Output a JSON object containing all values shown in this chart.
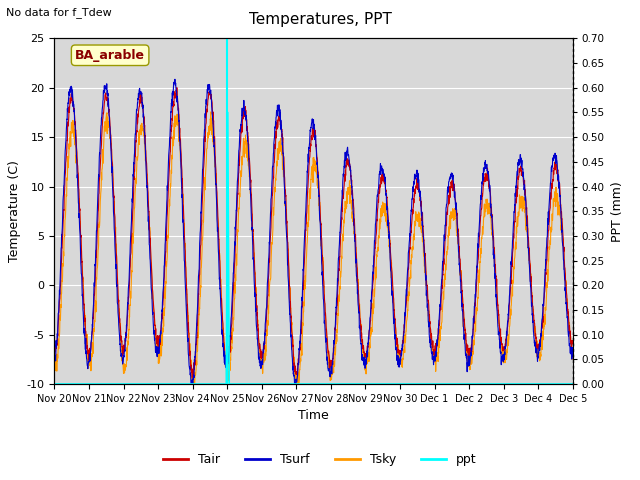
{
  "title": "Temperatures, PPT",
  "subtitle": "No data for f_Tdew",
  "site_label": "BA_arable",
  "xlabel": "Time",
  "ylabel_left": "Temperature (C)",
  "ylabel_right": "PPT (mm)",
  "ylim_left": [
    -10,
    25
  ],
  "ylim_right": [
    0.0,
    0.7
  ],
  "yticks_left": [
    -10,
    -5,
    0,
    5,
    10,
    15,
    20,
    25
  ],
  "yticks_right": [
    0.0,
    0.05,
    0.1,
    0.15,
    0.2,
    0.25,
    0.3,
    0.35,
    0.4,
    0.45,
    0.5,
    0.55,
    0.6,
    0.65,
    0.7
  ],
  "x_tick_labels": [
    "Nov 20",
    "Nov 21",
    "Nov 22",
    "Nov 23",
    "Nov 24",
    "Nov 25",
    "Nov 26",
    "Nov 27",
    "Nov 28",
    "Nov 29",
    "Nov 30",
    "Dec 1",
    "Dec 2",
    "Dec 3",
    "Dec 4",
    "Dec 5"
  ],
  "colors": {
    "Tair": "#cc0000",
    "Tsurf": "#0000cc",
    "Tsky": "#ff9900",
    "ppt": "#00ffff",
    "background": "#d8d8d8",
    "vline": "#00ffff"
  },
  "line_widths": {
    "Tair": 0.8,
    "Tsurf": 0.8,
    "Tsky": 0.8,
    "ppt": 1.2
  },
  "vline_x": 5.0,
  "n_days": 15,
  "pts_per_day": 144
}
